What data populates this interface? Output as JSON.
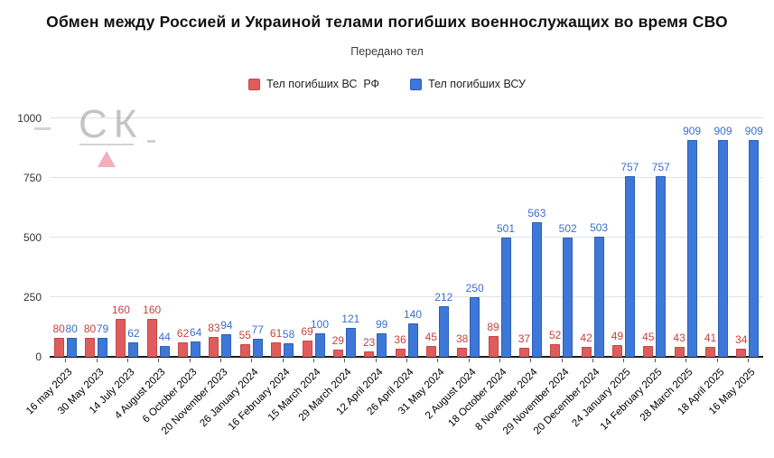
{
  "title": "Обмен между Россией и Украиной телами погибших военнослужащих во время СВО",
  "subtitle": "Передано тел",
  "watermark": {
    "text": "СК"
  },
  "colors": {
    "rf_bar": "#e05c5c",
    "rf_border": "#c24848",
    "rf_label": "#c6423d",
    "vsu_bar": "#3d78d8",
    "vsu_border": "#2d5fb4",
    "vsu_label": "#3a6fc9",
    "grid": "#e2e2e2",
    "axis": "#1c1c1c"
  },
  "chart_data": {
    "type": "bar",
    "title": "Обмен между Россией и Украиной телами погибших военнослужащих во время СВО",
    "subtitle": "Передано тел",
    "xlabel": "",
    "ylabel": "",
    "ylim": [
      0,
      1000
    ],
    "yticks": [
      0,
      250,
      500,
      750,
      1000
    ],
    "grid": true,
    "legend_position": "top",
    "categories": [
      "16 may 2023",
      "30 May 2023",
      "14 July 2023",
      "4 August 2023",
      "6 October 2023",
      "20 November 2023",
      "26 January 2024",
      "16 February 2024",
      "15 March 2024",
      "29 March 2024",
      "12 April 2024",
      "26 April 2024",
      "31 May 2024",
      "2 August 2024",
      "18 October 2024",
      "8 November 2024",
      "29 November 2024",
      "20 December 2024",
      "24 January 2025",
      "14 February 2025",
      "28 March 2025",
      "18 April 2025",
      "16 May 2025"
    ],
    "series": [
      {
        "name": "Тел погибших ВС  РФ",
        "values": [
          80,
          80,
          160,
          160,
          62,
          83,
          55,
          61,
          69,
          29,
          23,
          36,
          45,
          38,
          89,
          37,
          52,
          42,
          49,
          45,
          43,
          41,
          34
        ]
      },
      {
        "name": "Тел погибших ВСУ",
        "values": [
          80,
          79,
          62,
          44,
          64,
          94,
          77,
          58,
          100,
          121,
          99,
          140,
          212,
          250,
          501,
          563,
          502,
          503,
          757,
          757,
          909,
          909,
          909
        ]
      }
    ]
  }
}
